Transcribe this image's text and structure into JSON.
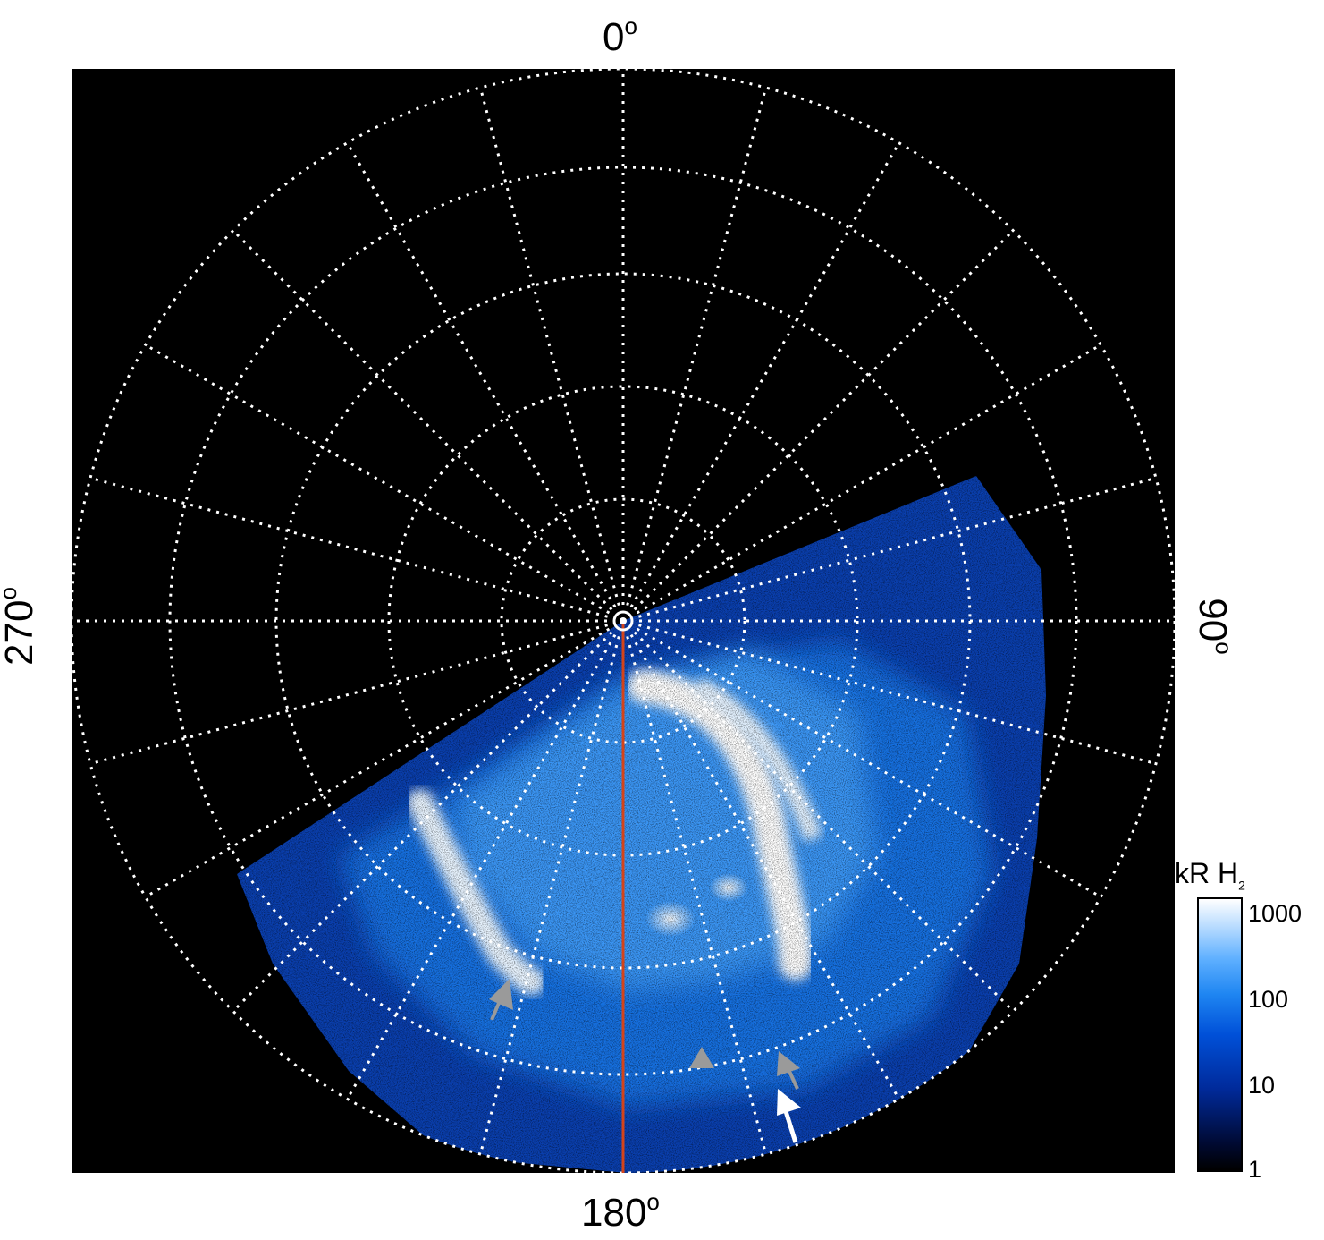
{
  "axis_labels": {
    "top": "0",
    "right": "90",
    "bottom": "180",
    "left": "270",
    "degree_symbol": "o"
  },
  "colorbar": {
    "title": "kR H",
    "title_subscript": "2",
    "ticks": [
      "1000",
      "100",
      "10",
      "1"
    ],
    "colors": [
      "#000000",
      "#000a33",
      "#002a9a",
      "#0050d8",
      "#1f86f2",
      "#5fb0ff",
      "#b9dcff",
      "#ffffff"
    ]
  },
  "colors": {
    "grid": "#ffffff",
    "meridian_line": "#d4441a",
    "arrow_gray": "#9a9a9a",
    "arrow_white": "#ffffff"
  },
  "description_icons": [
    "aurora-oval-image",
    "polar-grid",
    "gray-arrow-icon",
    "white-arrow-icon"
  ]
}
